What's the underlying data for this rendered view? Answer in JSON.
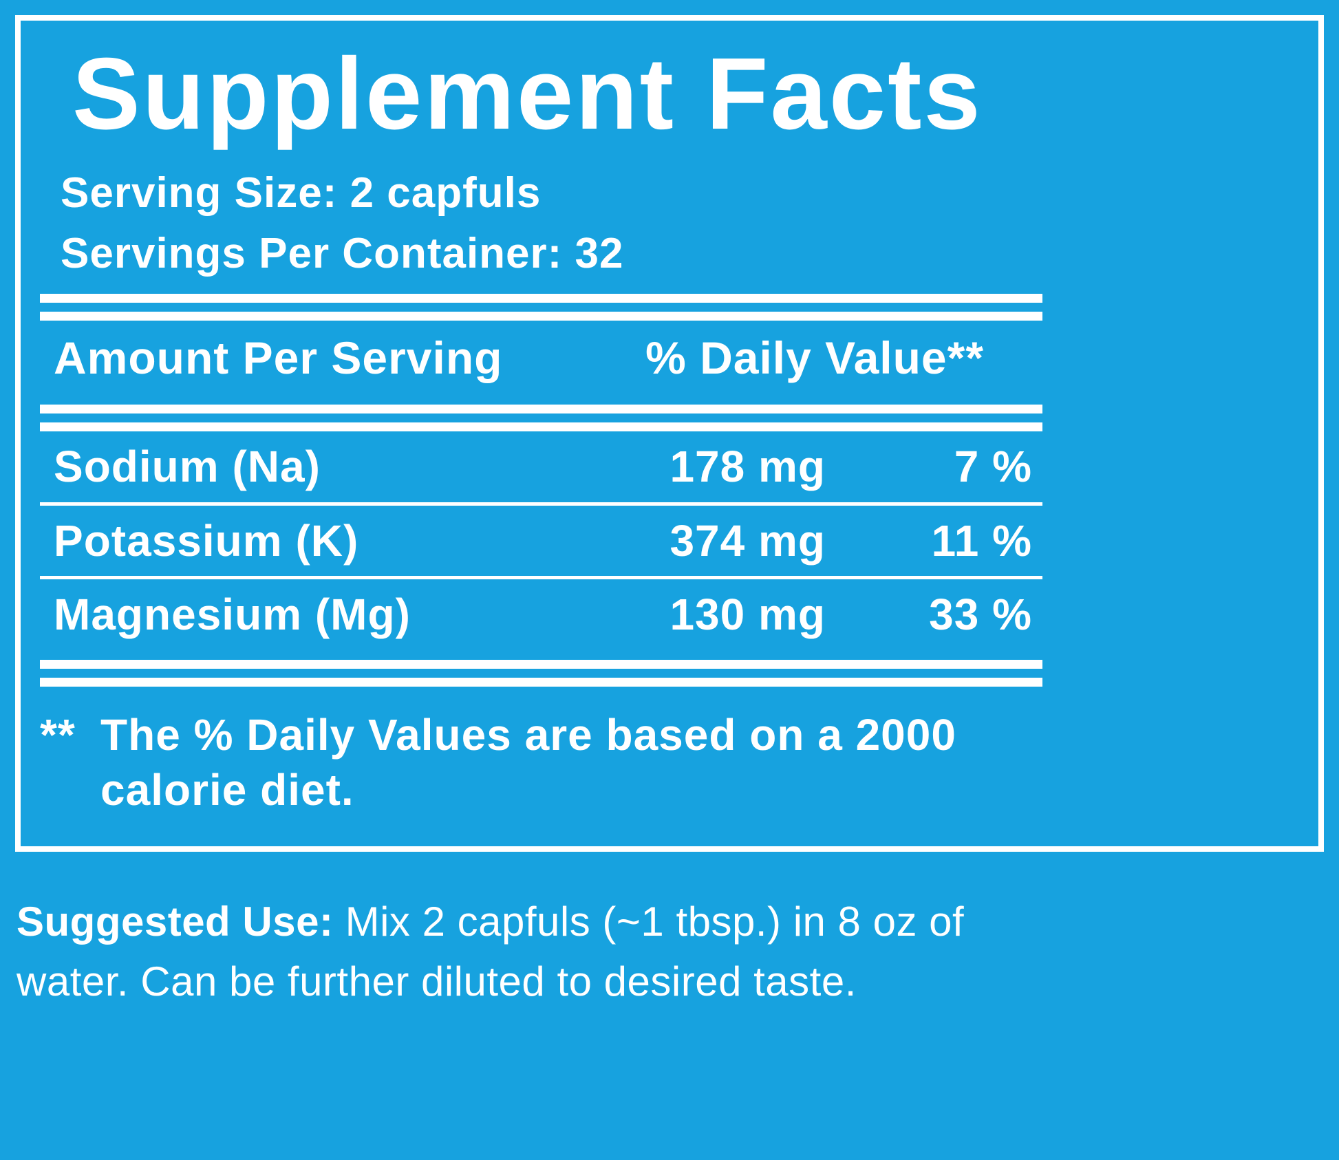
{
  "colors": {
    "background": "#17A2DF",
    "text": "#FFFFFF"
  },
  "panel": {
    "title": "Supplement Facts",
    "serving_size": "Serving Size: 2 capfuls",
    "servings_per_container": "Servings Per Container: 32",
    "header": {
      "amount_col": "Amount Per Serving",
      "dv_col": "% Daily Value**"
    },
    "rows": [
      {
        "name": "Sodium (Na)",
        "amount": "178 mg",
        "dv": "7 %"
      },
      {
        "name": "Potassium (K)",
        "amount": "374 mg",
        "dv": "11 %"
      },
      {
        "name": "Magnesium (Mg)",
        "amount": "130 mg",
        "dv": "33 %"
      }
    ],
    "footnote": {
      "marker": "**",
      "text": "The % Daily Values are based on a 2000 calorie diet."
    }
  },
  "suggested_use": {
    "label": "Suggested Use:",
    "text": " Mix 2 capfuls (~1 tbsp.) in 8 oz of water. Can be further diluted to desired taste."
  }
}
